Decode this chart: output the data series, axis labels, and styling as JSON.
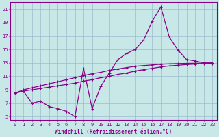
{
  "xlabel": "Windchill (Refroidissement éolien,°C)",
  "xlim": [
    -0.5,
    23.5
  ],
  "ylim": [
    4.5,
    22.0
  ],
  "xticks": [
    0,
    1,
    2,
    3,
    4,
    5,
    6,
    7,
    8,
    9,
    10,
    11,
    12,
    13,
    14,
    15,
    16,
    17,
    18,
    19,
    20,
    21,
    22,
    23
  ],
  "yticks": [
    5,
    7,
    9,
    11,
    13,
    15,
    17,
    19,
    21
  ],
  "bg_color": "#c8e8e8",
  "line_color": "#880088",
  "grid_color": "#99bbcc",
  "line1_x": [
    0,
    1,
    2,
    3,
    4,
    5,
    6,
    7,
    8,
    9,
    10,
    11,
    12,
    13,
    14,
    15,
    16,
    17,
    18,
    19,
    20,
    21,
    22,
    23
  ],
  "line1_y": [
    8.5,
    9.0,
    9.3,
    9.6,
    9.9,
    10.2,
    10.5,
    10.8,
    11.1,
    11.4,
    11.6,
    11.9,
    12.1,
    12.3,
    12.5,
    12.6,
    12.7,
    12.8,
    12.85,
    12.9,
    12.93,
    12.95,
    12.97,
    13.0
  ],
  "line2_x": [
    0,
    1,
    2,
    3,
    4,
    5,
    6,
    7,
    8,
    9,
    10,
    11,
    12,
    13,
    14,
    15,
    16,
    17,
    18,
    19,
    20,
    21,
    22,
    23
  ],
  "line2_y": [
    8.5,
    8.8,
    9.0,
    9.2,
    9.4,
    9.6,
    9.8,
    10.0,
    10.3,
    10.5,
    10.8,
    11.0,
    11.3,
    11.5,
    11.8,
    12.0,
    12.2,
    12.4,
    12.55,
    12.65,
    12.75,
    12.82,
    12.88,
    12.93
  ],
  "line3_x": [
    0,
    1,
    2,
    3,
    4,
    5,
    6,
    7,
    8,
    9,
    10,
    11,
    12,
    13,
    14,
    15,
    16,
    17,
    18,
    19,
    20,
    21,
    22,
    23
  ],
  "line3_y": [
    8.5,
    8.8,
    7.0,
    7.3,
    6.5,
    6.2,
    5.8,
    5.0,
    12.2,
    6.2,
    9.5,
    11.5,
    13.5,
    14.4,
    15.0,
    16.4,
    19.2,
    21.3,
    16.8,
    14.9,
    13.5,
    13.3,
    13.0,
    13.0
  ]
}
